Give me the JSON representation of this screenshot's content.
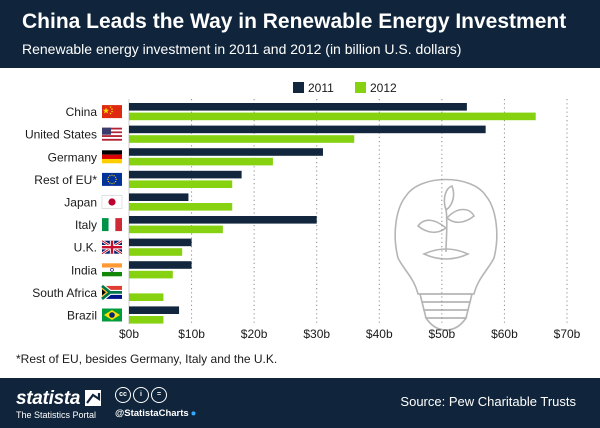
{
  "header": {
    "title": "China Leads the Way in Renewable Energy Investment",
    "subtitle": "Renewable energy investment in 2011 and 2012 (in billion U.S. dollars)"
  },
  "colors": {
    "series_2011": "#12273d",
    "series_2012": "#86d110",
    "header_bg": "#10253b"
  },
  "chart_data": {
    "type": "bar",
    "orientation": "horizontal",
    "categories": [
      "China",
      "United States",
      "Germany",
      "Rest of EU*",
      "Japan",
      "Italy",
      "U.K.",
      "India",
      "South Africa",
      "Brazil"
    ],
    "flags": [
      "china-flag",
      "usa-flag",
      "germany-flag",
      "eu-flag",
      "japan-flag",
      "italy-flag",
      "uk-flag",
      "india-flag",
      "south-africa-flag",
      "brazil-flag"
    ],
    "series": [
      {
        "name": "2011",
        "values": [
          54,
          57,
          31,
          18,
          9.5,
          30,
          10,
          10,
          0,
          8
        ]
      },
      {
        "name": "2012",
        "values": [
          65,
          36,
          23,
          16.5,
          16.5,
          15,
          8.5,
          7,
          5.5,
          5.5
        ]
      }
    ],
    "xlim": [
      0,
      70
    ],
    "ticks": [
      "$0b",
      "$10b",
      "$20b",
      "$30b",
      "$40b",
      "$50b",
      "$60b",
      "$70b"
    ],
    "tick_values": [
      0,
      10,
      20,
      30,
      40,
      50,
      60,
      70
    ],
    "legend": [
      "2011",
      "2012"
    ],
    "legend_position": "top",
    "grid": true,
    "xlabel": "",
    "ylabel": ""
  },
  "footnote": "*Rest of EU, besides Germany, Italy and the U.K.",
  "footer": {
    "brand": "statista",
    "tagline": "The Statistics Portal",
    "license_icons": [
      "cc",
      "i",
      "="
    ],
    "handle": "@StatistaCharts",
    "source": "Source: Pew Charitable Trusts"
  }
}
